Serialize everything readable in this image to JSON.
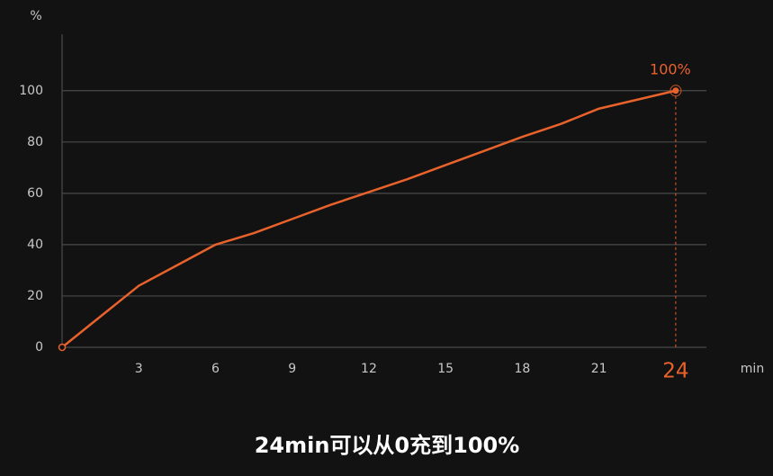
{
  "chart_data": {
    "type": "line",
    "y_label": "%",
    "x_label": "min",
    "caption": "24min可以从0充到100%",
    "x": [
      0,
      1.5,
      3,
      4.5,
      6,
      7.5,
      9,
      10.5,
      12,
      13.5,
      15,
      16.5,
      18,
      19.5,
      21,
      22.5,
      24
    ],
    "values": [
      0,
      12,
      24,
      32,
      40,
      44.5,
      50,
      55.5,
      60.5,
      65.5,
      71,
      76.5,
      82,
      87,
      93,
      96.5,
      100
    ],
    "color": "#e8622c",
    "xlim": [
      0,
      25.2
    ],
    "ylim": [
      0,
      122
    ],
    "xticks": [
      3,
      6,
      9,
      12,
      15,
      18,
      21
    ],
    "yticks": [
      0,
      20,
      40,
      60,
      80,
      100
    ],
    "grid": true,
    "highlight": {
      "x": 24,
      "y": 100,
      "label": "100%"
    }
  }
}
